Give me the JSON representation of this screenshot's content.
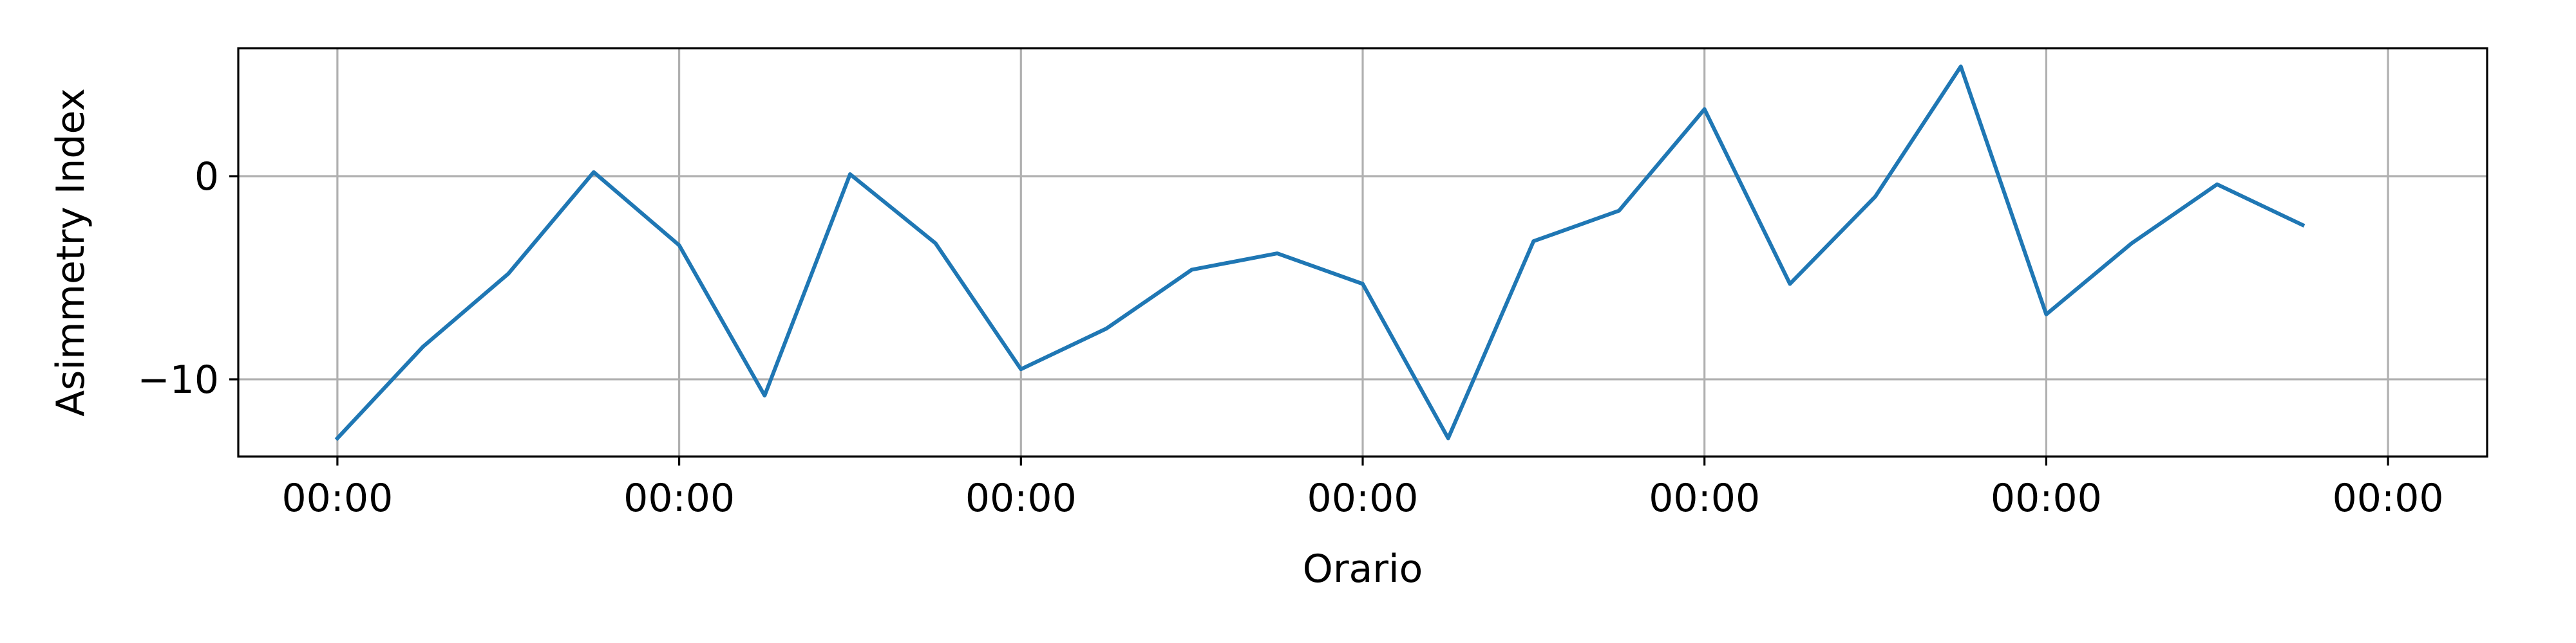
{
  "chart_data": {
    "type": "line",
    "title": "",
    "xlabel": "Orario",
    "ylabel": "Asimmetry Index",
    "grid": true,
    "legend": "none",
    "xlim": [
      -0.29,
      6.29
    ],
    "ylim": [
      -13.8,
      6.3
    ],
    "x_ticks": [
      0,
      1,
      2,
      3,
      4,
      5,
      6
    ],
    "x_tick_labels": [
      "00:00",
      "00:00",
      "00:00",
      "00:00",
      "00:00",
      "00:00",
      "00:00"
    ],
    "y_ticks": [
      -10,
      0
    ],
    "y_tick_labels": [
      "−10",
      "0"
    ],
    "series": [
      {
        "color": "#1f77b4",
        "x": [
          0,
          0.25,
          0.5,
          0.75,
          1,
          1.25,
          1.5,
          1.75,
          2,
          2.25,
          2.5,
          2.75,
          3,
          3.25,
          3.5,
          3.75,
          4,
          4.25,
          4.5,
          4.75,
          5,
          5.25,
          5.5,
          5.75
        ],
        "values": [
          -12.9,
          -8.4,
          -4.8,
          0.2,
          -3.4,
          -10.8,
          0.1,
          -3.3,
          -9.5,
          -7.5,
          -4.6,
          -3.8,
          -5.3,
          -12.9,
          -3.2,
          -1.7,
          3.3,
          -5.3,
          -1.0,
          5.4,
          -6.8,
          -3.3,
          -0.4,
          -2.4
        ]
      }
    ]
  }
}
